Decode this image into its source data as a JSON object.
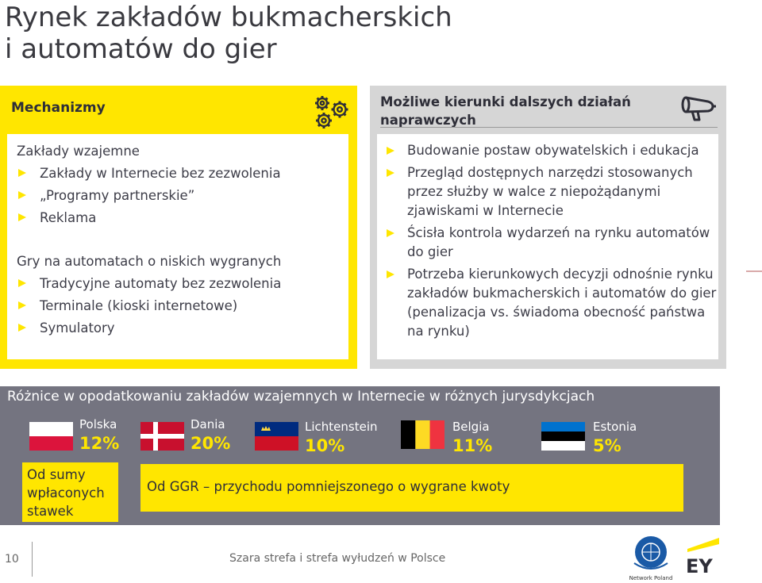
{
  "title": {
    "line1": "Rynek zakładów bukmacherskich",
    "line2": "i automatów do gier"
  },
  "mechanisms": {
    "header": "Mechanizmy",
    "icon": "gears-icon",
    "group1": {
      "label": "Zakłady wzajemne",
      "items": [
        "Zakłady w Internecie bez zezwolenia",
        "„Programy partnerskie”",
        "Reklama"
      ]
    },
    "group2": {
      "label": "Gry na automatach o niskich wygranych",
      "items": [
        "Tradycyjne automaty bez zezwolenia",
        "Terminale (kioski internetowe)",
        "Symulatory"
      ]
    }
  },
  "actions": {
    "header": "Możliwe kierunki dalszych działań naprawczych",
    "icon": "megaphone-icon",
    "items": [
      "Budowanie postaw obywatelskich i edukacja",
      "Przegląd dostępnych narzędzi stosowanych przez służby w walce z niepożądanymi zjawiskami w Internecie",
      "Ścisła kontrola wydarzeń na rynku automatów do gier",
      "Potrzeba kierunkowych decyzji odnośnie rynku zakładów bukmacherskich i automatów do gier (penalizacja vs. świadoma obecność państwa na rynku)"
    ]
  },
  "taxation": {
    "header": "Różnice w opodatkowaniu zakładów wzajemnych w Internecie w różnych jurysdykcjach",
    "countries": [
      {
        "name": "Polska",
        "value": "12%"
      },
      {
        "name": "Dania",
        "value": "20%"
      },
      {
        "name": "Lichtenstein",
        "value": "10%"
      },
      {
        "name": "Belgia",
        "value": "11%"
      },
      {
        "name": "Estonia",
        "value": "5%"
      }
    ],
    "basis_stakes": "Od sumy wpłaconych stawek",
    "basis_ggr": "Od GGR – przychodu pomniejszonego o wygrane kwoty"
  },
  "footer": {
    "page_number": "10",
    "text": "Szara strefa i strefa wyłudzeń w Polsce",
    "ungc_caption": "Network Poland",
    "ey_logo": "EY"
  },
  "colors": {
    "yellow": "#ffe600",
    "grey_dark": "#747480",
    "grey_light": "#d6d6d6",
    "text": "#3d3d48"
  }
}
